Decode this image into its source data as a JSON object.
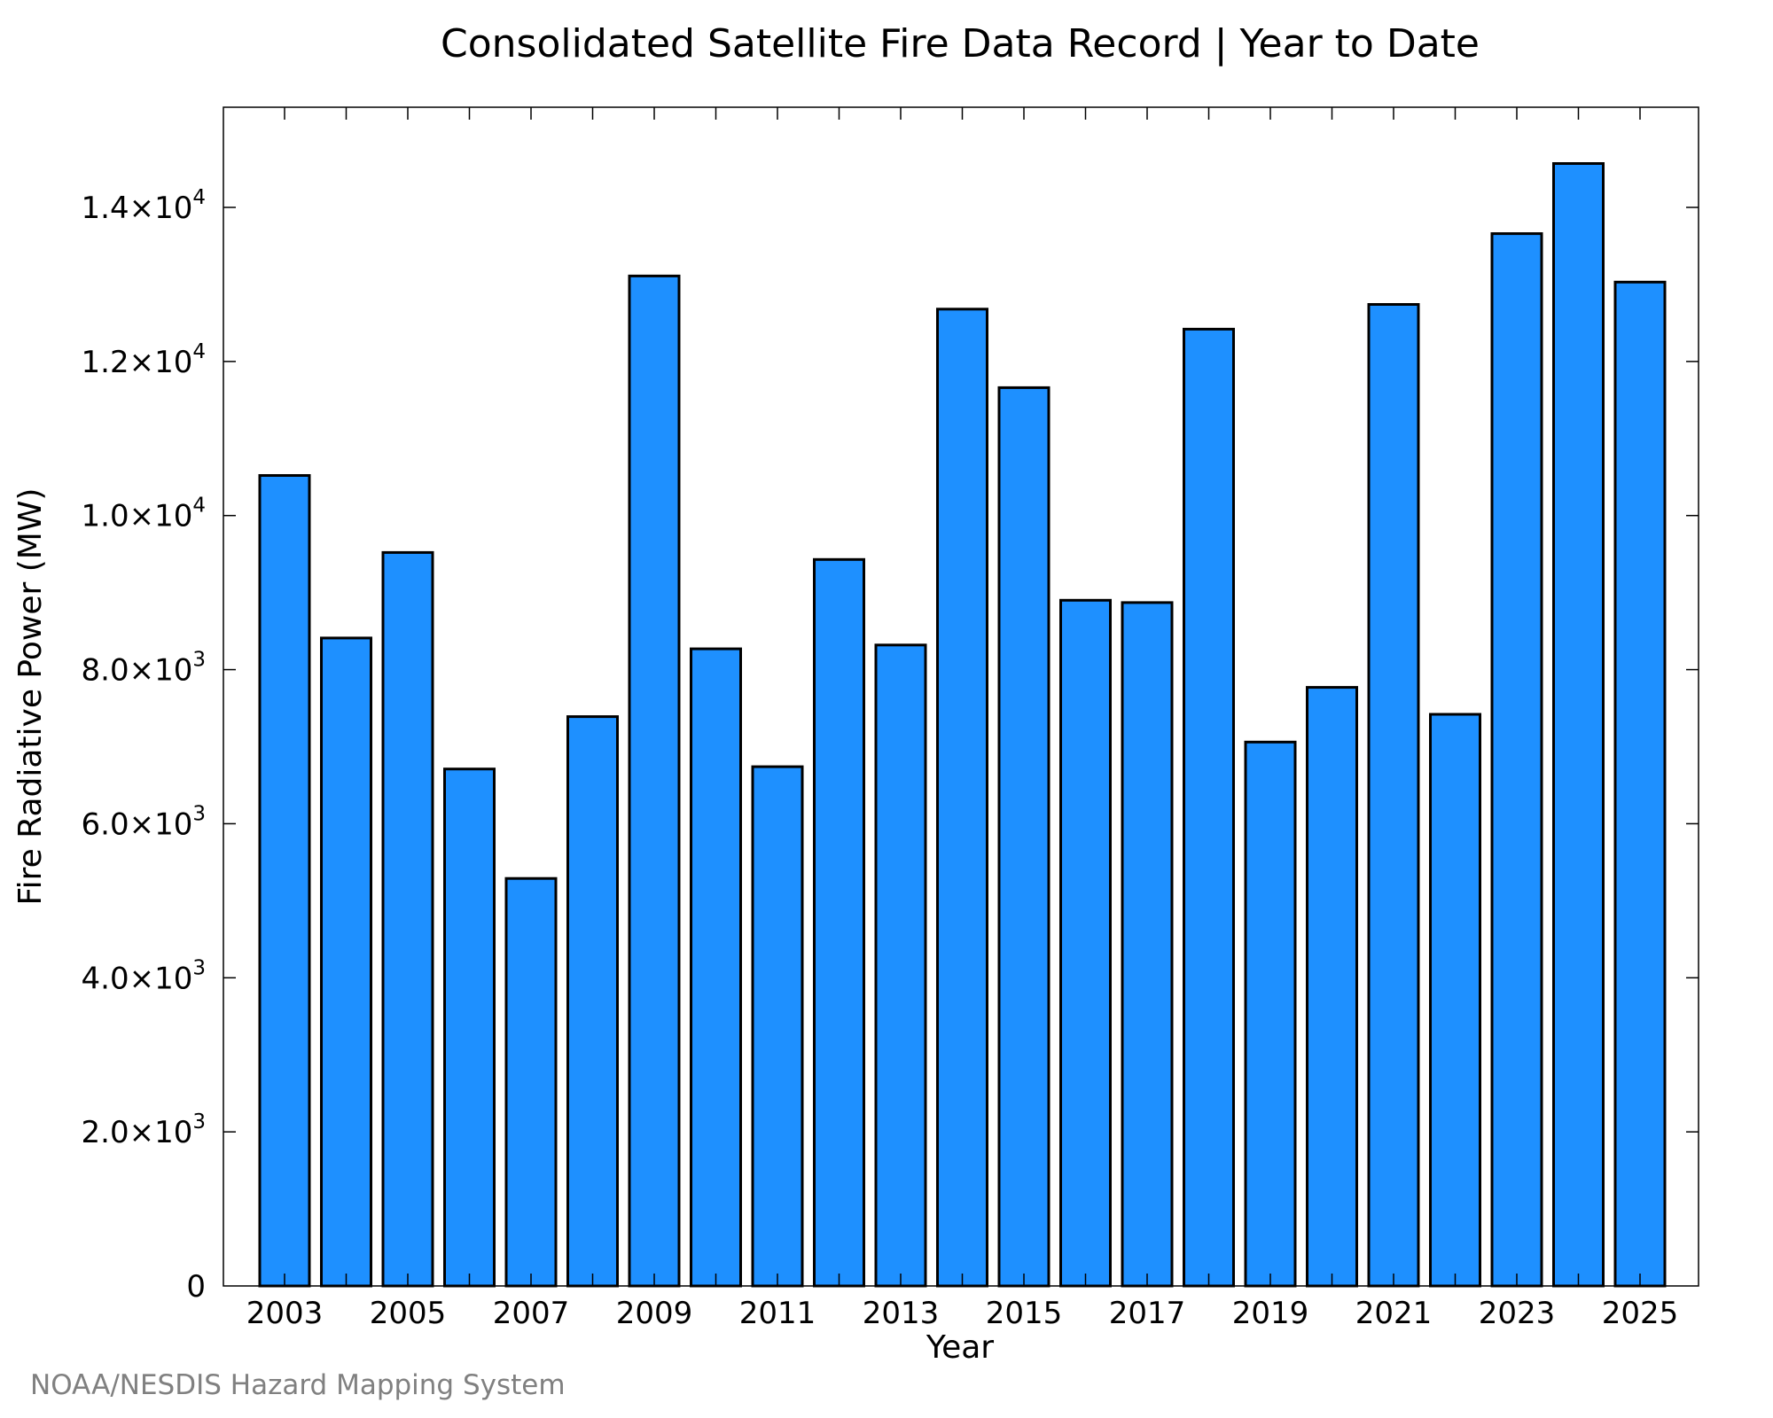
{
  "chart_data": {
    "type": "bar",
    "title": "Consolidated Satellite Fire Data Record | Year to Date",
    "xlabel": "Year",
    "ylabel": "Fire Radiative Power (MW)",
    "categories": [
      "2003",
      "2004",
      "2005",
      "2006",
      "2007",
      "2008",
      "2009",
      "2010",
      "2011",
      "2012",
      "2013",
      "2014",
      "2015",
      "2016",
      "2017",
      "2018",
      "2019",
      "2020",
      "2021",
      "2022",
      "2023",
      "2024",
      "2025"
    ],
    "values": [
      10520,
      8410,
      9520,
      6710,
      5290,
      7390,
      13110,
      8270,
      6740,
      9430,
      8320,
      12680,
      11660,
      8900,
      8870,
      12420,
      7060,
      7770,
      12740,
      7420,
      13660,
      14570,
      13030
    ],
    "ylim": [
      0,
      14000
    ],
    "ymax": 15300,
    "yticks": [
      {
        "value": 0,
        "mantissa": "0",
        "exp": ""
      },
      {
        "value": 2000,
        "mantissa": "2.0×10",
        "exp": "3"
      },
      {
        "value": 4000,
        "mantissa": "4.0×10",
        "exp": "3"
      },
      {
        "value": 6000,
        "mantissa": "6.0×10",
        "exp": "3"
      },
      {
        "value": 8000,
        "mantissa": "8.0×10",
        "exp": "3"
      },
      {
        "value": 10000,
        "mantissa": "1.0×10",
        "exp": "4"
      },
      {
        "value": 12000,
        "mantissa": "1.2×10",
        "exp": "4"
      },
      {
        "value": 14000,
        "mantissa": "1.4×10",
        "exp": "4"
      }
    ],
    "xtick_labels": [
      "2003",
      "2005",
      "2007",
      "2009",
      "2011",
      "2013",
      "2015",
      "2017",
      "2019",
      "2021",
      "2023",
      "2025"
    ],
    "bar_color": "#1e90ff",
    "grid": false,
    "legend": "none"
  },
  "source_note": "NOAA/NESDIS Hazard Mapping System"
}
